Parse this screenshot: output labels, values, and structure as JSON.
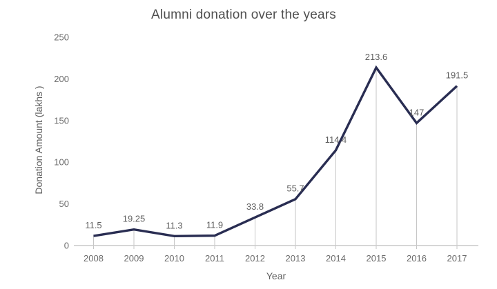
{
  "chart_data": {
    "type": "line",
    "title": "Alumni donation over the years",
    "xlabel": "Year",
    "ylabel": "Donation Amount (lakhs )",
    "categories": [
      "2008",
      "2009",
      "2010",
      "2011",
      "2012",
      "2013",
      "2014",
      "2015",
      "2016",
      "2017"
    ],
    "series": [
      {
        "name": "Donation Amount",
        "values": [
          11.5,
          19.25,
          11.3,
          11.9,
          33.8,
          55.7,
          114.4,
          213.6,
          147,
          191.5
        ],
        "data_labels": [
          "11.5",
          "19.25",
          "11.3",
          "11.9",
          "33.8",
          "55.7",
          "114.4",
          "213.6",
          "147",
          "191.5"
        ]
      }
    ],
    "y_ticks": [
      "0",
      "50",
      "100",
      "150",
      "200",
      "250"
    ],
    "ylim": [
      0,
      250
    ],
    "legend": "none",
    "gridlines": "vertical drop lines from each data point to x-axis",
    "colors": {
      "line": "#292d52",
      "drop_line": "#c6c6c6",
      "axis_line": "#c9c9c9",
      "tick_label_text": "#6b6b6b",
      "data_label_text": "#5f5f5f",
      "title_text": "#4f4f4f",
      "background": "#ffffff"
    }
  }
}
